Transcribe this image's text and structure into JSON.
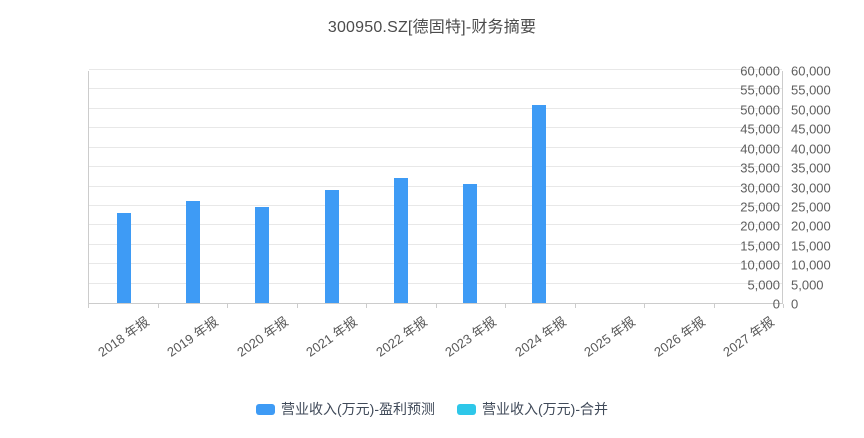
{
  "page": {
    "title": "300950.SZ[德固特]-财务摘要"
  },
  "chart_data": {
    "type": "bar",
    "title": "300950.SZ[德固特]-财务摘要",
    "categories": [
      "2018 年报",
      "2019 年报",
      "2020 年报",
      "2021 年报",
      "2022 年报",
      "2023 年报",
      "2024 年报",
      "2025 年报",
      "2026 年报",
      "2027 年报"
    ],
    "series": [
      {
        "name": "营业收入(万元)-盈利预测",
        "color": "#3E9BF5",
        "values": [
          23400,
          26300,
          24800,
          29200,
          32300,
          30700,
          51300,
          null,
          null,
          null
        ]
      },
      {
        "name": "营业收入(万元)-合并",
        "color": "#2EC7E9",
        "values": [
          null,
          null,
          null,
          null,
          null,
          null,
          null,
          null,
          null,
          null
        ]
      }
    ],
    "xlabel": "",
    "ylabel": "",
    "ylim": [
      0,
      60000
    ],
    "y_tick_interval": 5000,
    "y_tick_labels": [
      "0",
      "5,000",
      "10,000",
      "15,000",
      "20,000",
      "25,000",
      "30,000",
      "35,000",
      "40,000",
      "45,000",
      "50,000",
      "55,000",
      "60,000"
    ],
    "dual_y_axis": true,
    "grid": true,
    "legend_position": "bottom"
  },
  "colors": {
    "background": "#ffffff",
    "gridline": "#e8e8e8",
    "axis_line": "#cccccc",
    "title_text": "#4c4c4c",
    "axis_text": "#5e5e5e",
    "legend_text": "#404a59"
  }
}
